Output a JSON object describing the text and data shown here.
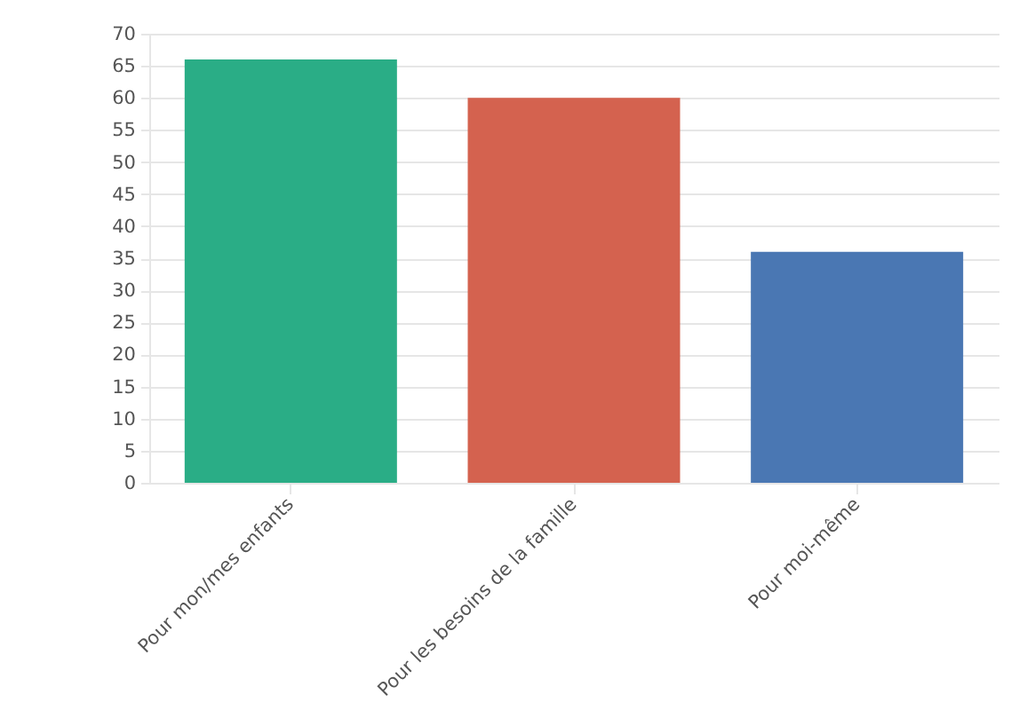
{
  "chart_data": {
    "type": "bar",
    "categories": [
      "Pour mon/mes enfants",
      "Pour les besoins de la famille",
      "Pour moi-même"
    ],
    "values": [
      66,
      60,
      36
    ],
    "colors": [
      "#2aad86",
      "#d4624f",
      "#4a77b3"
    ],
    "ylim": [
      0,
      70
    ],
    "yticks": [
      0,
      5,
      10,
      15,
      20,
      25,
      30,
      35,
      40,
      45,
      50,
      55,
      60,
      65,
      70
    ],
    "grid": "y"
  }
}
